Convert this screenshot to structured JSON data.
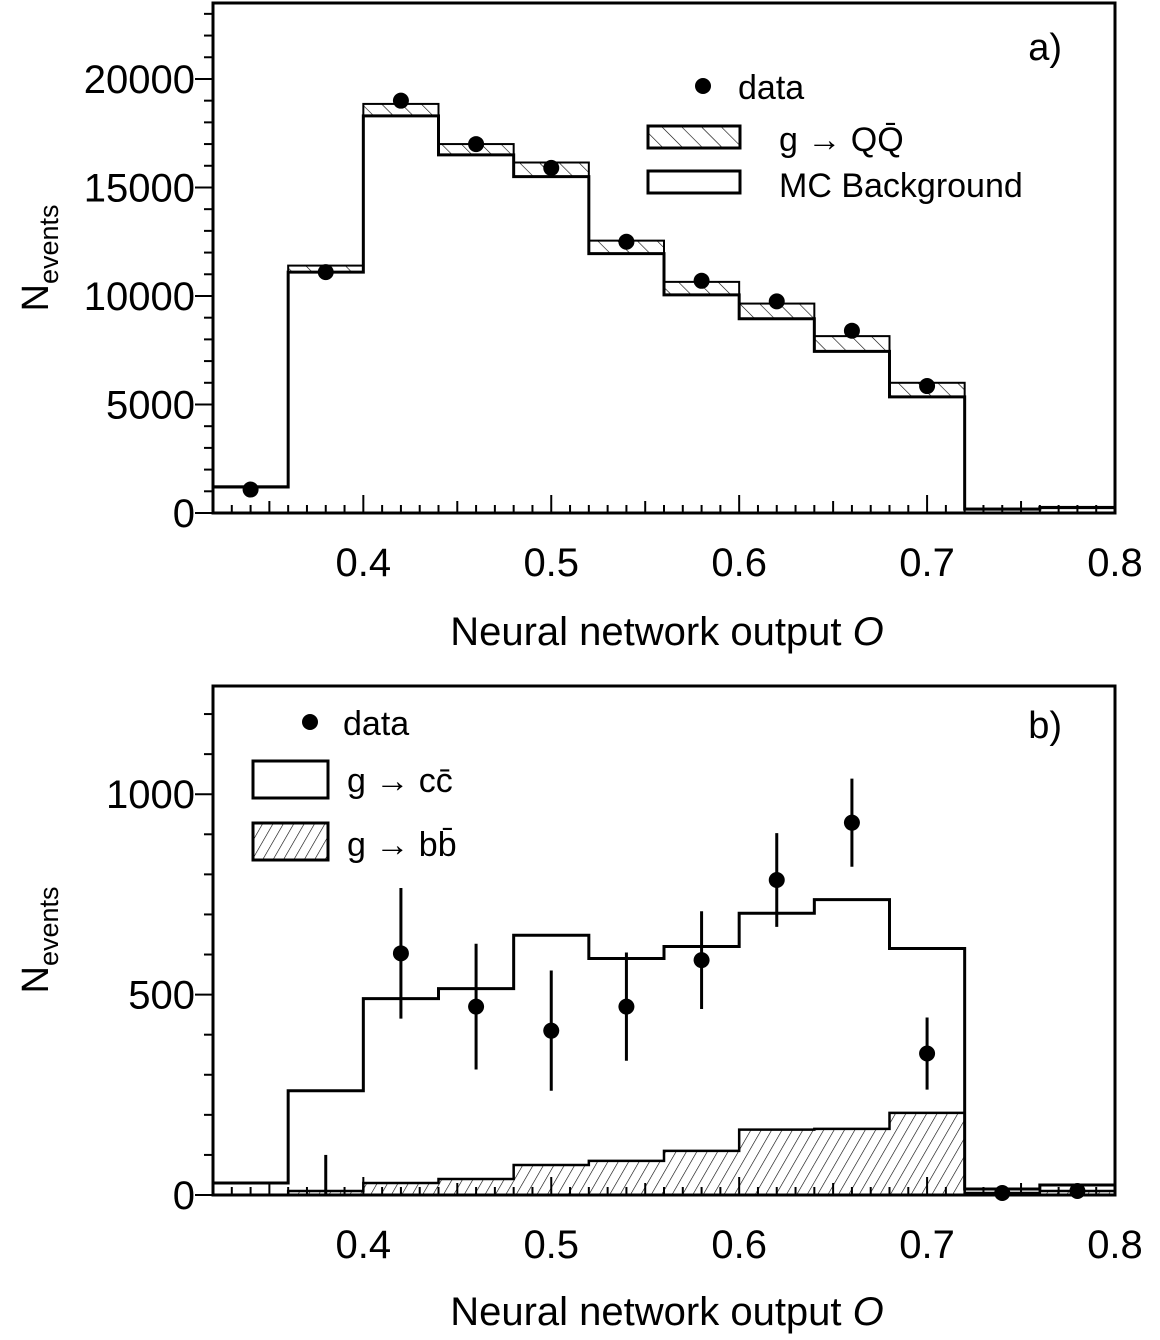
{
  "chart_data": [
    {
      "panel_label": "a)",
      "type": "histogram",
      "xlabel": "Neural network output",
      "xlabel_symbol": "O",
      "ylabel_main": "N",
      "ylabel_sub": "events",
      "xlim": [
        0.32,
        0.8
      ],
      "ylim": [
        0,
        23500
      ],
      "x_ticks": [
        0.4,
        0.5,
        0.6,
        0.7,
        0.8
      ],
      "y_ticks": [
        0,
        5000,
        10000,
        15000,
        20000
      ],
      "legend_placement": "upper-right",
      "legend": [
        {
          "label": "data",
          "marker": "dot"
        },
        {
          "label": "g → QQ̄",
          "marker": "hatched-box"
        },
        {
          "label": "MC Background",
          "marker": "open-box"
        }
      ],
      "bin_edges": [
        0.32,
        0.36,
        0.4,
        0.44,
        0.48,
        0.52,
        0.56,
        0.6,
        0.64,
        0.68,
        0.72,
        0.76,
        0.8
      ],
      "series": [
        {
          "name": "MC Background",
          "style": "step",
          "values": [
            1200,
            11100,
            18300,
            16500,
            15500,
            11950,
            10050,
            8950,
            7450,
            5350,
            180,
            250
          ]
        },
        {
          "name": "g → QQ̄",
          "style": "hatched-band",
          "values": [
            30,
            300,
            550,
            500,
            650,
            600,
            600,
            700,
            700,
            650,
            20,
            30
          ]
        },
        {
          "name": "data",
          "style": "points",
          "x": [
            0.34,
            0.38,
            0.42,
            0.46,
            0.5,
            0.54,
            0.58,
            0.62,
            0.66,
            0.7
          ],
          "y": [
            1080,
            11100,
            19000,
            17000,
            15900,
            12500,
            10700,
            9750,
            8400,
            5850
          ]
        }
      ]
    },
    {
      "panel_label": "b)",
      "type": "histogram",
      "xlabel": "Neural network output",
      "xlabel_symbol": "O",
      "ylabel_main": "N",
      "ylabel_sub": "events",
      "xlim": [
        0.32,
        0.8
      ],
      "ylim": [
        0,
        1270
      ],
      "x_ticks": [
        0.4,
        0.5,
        0.6,
        0.7,
        0.8
      ],
      "y_ticks": [
        0,
        500,
        1000
      ],
      "legend_placement": "upper-left",
      "legend": [
        {
          "label": "data",
          "marker": "dot"
        },
        {
          "label": "g → cc̄",
          "marker": "open-box"
        },
        {
          "label": "g → bb̄",
          "marker": "hatched-box"
        }
      ],
      "bin_edges": [
        0.32,
        0.36,
        0.4,
        0.44,
        0.48,
        0.52,
        0.56,
        0.6,
        0.64,
        0.68,
        0.72,
        0.76,
        0.8
      ],
      "series": [
        {
          "name": "g → cc̄",
          "style": "step",
          "values": [
            30,
            260,
            490,
            515,
            648,
            590,
            620,
            703,
            737,
            615,
            15,
            25
          ]
        },
        {
          "name": "g → bb̄",
          "style": "hatched",
          "values": [
            0,
            10,
            30,
            40,
            75,
            85,
            110,
            163,
            165,
            205,
            5,
            10
          ]
        },
        {
          "name": "data",
          "style": "points-with-errors",
          "x": [
            0.38,
            0.42,
            0.46,
            0.5,
            0.54,
            0.58,
            0.62,
            0.66,
            0.7,
            0.74,
            0.78
          ],
          "y": [
            0,
            603,
            470,
            410,
            470,
            586,
            786,
            929,
            353,
            5,
            10
          ],
          "err": [
            100,
            163,
            157,
            150,
            135,
            122,
            117,
            110,
            90,
            10,
            15
          ]
        }
      ]
    }
  ]
}
